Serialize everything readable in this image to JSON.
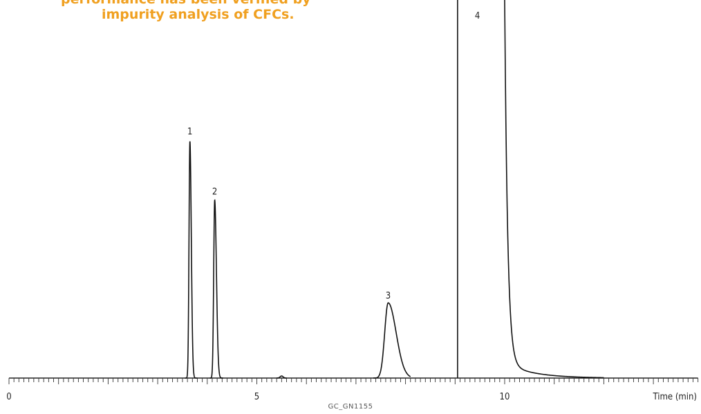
{
  "title": {
    "line1": "performance has been verified by",
    "line2": "impurity analysis of CFCs.",
    "color": "#F0A020"
  },
  "footer": "GC_GN1155",
  "chart_data": {
    "type": "line",
    "title": "",
    "xlabel": "Time (min)",
    "ylabel": "",
    "xlim": [
      0,
      13.9
    ],
    "x_ticks": [
      0,
      5,
      10
    ],
    "minor_tick_step": 0.1,
    "grid": false,
    "peaks": [
      {
        "label": "1",
        "time": 3.65,
        "rel_height": 0.645
      },
      {
        "label": "2",
        "time": 4.15,
        "rel_height": 0.485
      },
      {
        "label": "3",
        "time": 7.65,
        "rel_height": 0.205
      },
      {
        "label": "4",
        "time": 10.0,
        "rel_height": "off-scale"
      }
    ],
    "baseline_step_time": 9.05
  }
}
